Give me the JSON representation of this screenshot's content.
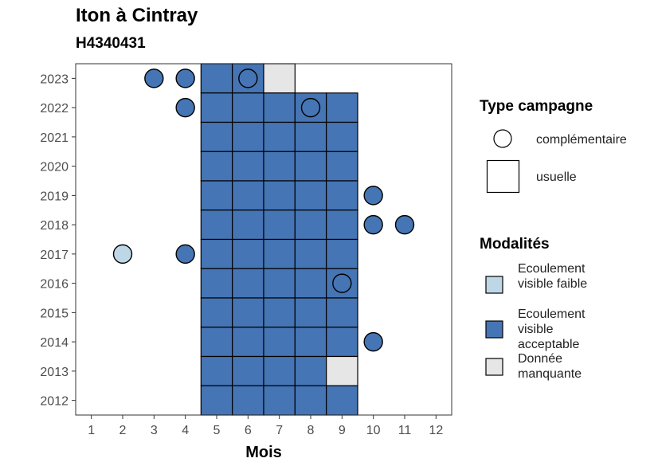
{
  "title": "Iton à Cintray",
  "subtitle": "H4340431",
  "colors": {
    "faible": "#bdd7e7",
    "acceptable": "#4575b4",
    "manquante": "#e6e6e6",
    "stroke": "#000000",
    "panel_border": "#333333"
  },
  "legend_type": {
    "title": "Type campagne",
    "items": [
      {
        "shape": "circle",
        "label": "complémentaire"
      },
      {
        "shape": "square",
        "label": "usuelle"
      }
    ]
  },
  "legend_modalites": {
    "title": "Modalités",
    "items": [
      {
        "key": "faible",
        "label": "Ecoulement visible faible"
      },
      {
        "key": "acceptable",
        "label": "Ecoulement visible acceptable"
      },
      {
        "key": "manquante",
        "label": "Donnée manquante"
      }
    ]
  },
  "chart_data": {
    "type": "heatmap",
    "xlabel": "Mois",
    "ylabel": "",
    "x_ticks": [
      1,
      2,
      3,
      4,
      5,
      6,
      7,
      8,
      9,
      10,
      11,
      12
    ],
    "y_ticks": [
      2012,
      2013,
      2014,
      2015,
      2016,
      2017,
      2018,
      2019,
      2020,
      2021,
      2022,
      2023
    ],
    "xlim": [
      0.5,
      12.5
    ],
    "ylim": [
      2011.5,
      2023.5
    ],
    "grid": false,
    "usuelle": [
      {
        "year": 2023,
        "month": 5,
        "modalite": "acceptable"
      },
      {
        "year": 2023,
        "month": 6,
        "modalite": "acceptable"
      },
      {
        "year": 2023,
        "month": 7,
        "modalite": "manquante"
      },
      {
        "year": 2022,
        "month": 5,
        "modalite": "acceptable"
      },
      {
        "year": 2022,
        "month": 6,
        "modalite": "acceptable"
      },
      {
        "year": 2022,
        "month": 7,
        "modalite": "acceptable"
      },
      {
        "year": 2022,
        "month": 8,
        "modalite": "acceptable"
      },
      {
        "year": 2022,
        "month": 9,
        "modalite": "acceptable"
      },
      {
        "year": 2021,
        "month": 5,
        "modalite": "acceptable"
      },
      {
        "year": 2021,
        "month": 6,
        "modalite": "acceptable"
      },
      {
        "year": 2021,
        "month": 7,
        "modalite": "acceptable"
      },
      {
        "year": 2021,
        "month": 8,
        "modalite": "acceptable"
      },
      {
        "year": 2021,
        "month": 9,
        "modalite": "acceptable"
      },
      {
        "year": 2020,
        "month": 5,
        "modalite": "acceptable"
      },
      {
        "year": 2020,
        "month": 6,
        "modalite": "acceptable"
      },
      {
        "year": 2020,
        "month": 7,
        "modalite": "acceptable"
      },
      {
        "year": 2020,
        "month": 8,
        "modalite": "acceptable"
      },
      {
        "year": 2020,
        "month": 9,
        "modalite": "acceptable"
      },
      {
        "year": 2019,
        "month": 5,
        "modalite": "acceptable"
      },
      {
        "year": 2019,
        "month": 6,
        "modalite": "acceptable"
      },
      {
        "year": 2019,
        "month": 7,
        "modalite": "acceptable"
      },
      {
        "year": 2019,
        "month": 8,
        "modalite": "acceptable"
      },
      {
        "year": 2019,
        "month": 9,
        "modalite": "acceptable"
      },
      {
        "year": 2018,
        "month": 5,
        "modalite": "acceptable"
      },
      {
        "year": 2018,
        "month": 6,
        "modalite": "acceptable"
      },
      {
        "year": 2018,
        "month": 7,
        "modalite": "acceptable"
      },
      {
        "year": 2018,
        "month": 8,
        "modalite": "acceptable"
      },
      {
        "year": 2018,
        "month": 9,
        "modalite": "acceptable"
      },
      {
        "year": 2017,
        "month": 5,
        "modalite": "acceptable"
      },
      {
        "year": 2017,
        "month": 6,
        "modalite": "acceptable"
      },
      {
        "year": 2017,
        "month": 7,
        "modalite": "acceptable"
      },
      {
        "year": 2017,
        "month": 8,
        "modalite": "acceptable"
      },
      {
        "year": 2017,
        "month": 9,
        "modalite": "acceptable"
      },
      {
        "year": 2016,
        "month": 5,
        "modalite": "acceptable"
      },
      {
        "year": 2016,
        "month": 6,
        "modalite": "acceptable"
      },
      {
        "year": 2016,
        "month": 7,
        "modalite": "acceptable"
      },
      {
        "year": 2016,
        "month": 8,
        "modalite": "acceptable"
      },
      {
        "year": 2016,
        "month": 9,
        "modalite": "acceptable"
      },
      {
        "year": 2015,
        "month": 5,
        "modalite": "acceptable"
      },
      {
        "year": 2015,
        "month": 6,
        "modalite": "acceptable"
      },
      {
        "year": 2015,
        "month": 7,
        "modalite": "acceptable"
      },
      {
        "year": 2015,
        "month": 8,
        "modalite": "acceptable"
      },
      {
        "year": 2015,
        "month": 9,
        "modalite": "acceptable"
      },
      {
        "year": 2014,
        "month": 5,
        "modalite": "acceptable"
      },
      {
        "year": 2014,
        "month": 6,
        "modalite": "acceptable"
      },
      {
        "year": 2014,
        "month": 7,
        "modalite": "acceptable"
      },
      {
        "year": 2014,
        "month": 8,
        "modalite": "acceptable"
      },
      {
        "year": 2014,
        "month": 9,
        "modalite": "acceptable"
      },
      {
        "year": 2013,
        "month": 5,
        "modalite": "acceptable"
      },
      {
        "year": 2013,
        "month": 6,
        "modalite": "acceptable"
      },
      {
        "year": 2013,
        "month": 7,
        "modalite": "acceptable"
      },
      {
        "year": 2013,
        "month": 8,
        "modalite": "acceptable"
      },
      {
        "year": 2013,
        "month": 9,
        "modalite": "manquante"
      },
      {
        "year": 2012,
        "month": 5,
        "modalite": "acceptable"
      },
      {
        "year": 2012,
        "month": 6,
        "modalite": "acceptable"
      },
      {
        "year": 2012,
        "month": 7,
        "modalite": "acceptable"
      },
      {
        "year": 2012,
        "month": 8,
        "modalite": "acceptable"
      },
      {
        "year": 2012,
        "month": 9,
        "modalite": "acceptable"
      }
    ],
    "complementaire": [
      {
        "year": 2023,
        "month": 3,
        "modalite": "acceptable"
      },
      {
        "year": 2023,
        "month": 4,
        "modalite": "acceptable"
      },
      {
        "year": 2023,
        "month": 6,
        "modalite": "acceptable"
      },
      {
        "year": 2022,
        "month": 4,
        "modalite": "acceptable"
      },
      {
        "year": 2022,
        "month": 8,
        "modalite": "acceptable"
      },
      {
        "year": 2019,
        "month": 10,
        "modalite": "acceptable"
      },
      {
        "year": 2018,
        "month": 10,
        "modalite": "acceptable"
      },
      {
        "year": 2018,
        "month": 11,
        "modalite": "acceptable"
      },
      {
        "year": 2017,
        "month": 2,
        "modalite": "faible"
      },
      {
        "year": 2017,
        "month": 4,
        "modalite": "acceptable"
      },
      {
        "year": 2016,
        "month": 9,
        "modalite": "acceptable"
      },
      {
        "year": 2014,
        "month": 10,
        "modalite": "acceptable"
      }
    ]
  }
}
